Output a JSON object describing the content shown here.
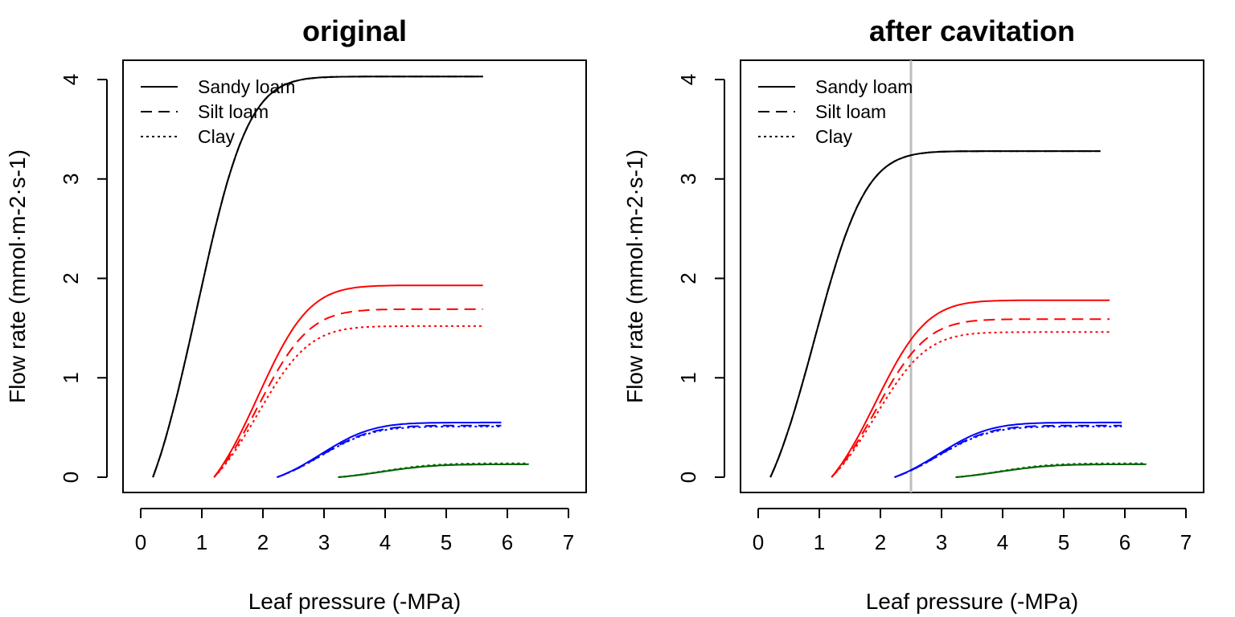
{
  "chart_data": [
    {
      "type": "line",
      "title": "original",
      "xlabel": "Leaf pressure (-MPa)",
      "ylabel": "Flow rate  (mmol·m-2·s-1)",
      "xlim": [
        0,
        7
      ],
      "ylim": [
        0,
        4
      ],
      "xticks": [
        0,
        1,
        2,
        3,
        4,
        5,
        6,
        7
      ],
      "yticks": [
        0,
        1,
        2,
        3,
        4
      ],
      "legend": {
        "position": "top-left",
        "entries": [
          {
            "label": "Sandy loam",
            "linestyle": "solid"
          },
          {
            "label": "Silt loam",
            "linestyle": "dashed"
          },
          {
            "label": "Clay",
            "linestyle": "dotted"
          }
        ]
      },
      "series": [
        {
          "color": "#000000",
          "linestyle": "solid",
          "x0": 0.2,
          "x1": 5.6,
          "ymax": 4.03
        },
        {
          "color": "#000000",
          "linestyle": "dashed",
          "x0": 0.2,
          "x1": 5.6,
          "ymax": 4.03
        },
        {
          "color": "#000000",
          "linestyle": "dotted",
          "x0": 0.2,
          "x1": 5.6,
          "ymax": 4.03
        },
        {
          "color": "#ff0000",
          "linestyle": "solid",
          "x0": 1.2,
          "x1": 5.6,
          "ymax": 1.93
        },
        {
          "color": "#ff0000",
          "linestyle": "dashed",
          "x0": 1.2,
          "x1": 5.6,
          "ymax": 1.69
        },
        {
          "color": "#ff0000",
          "linestyle": "dotted",
          "x0": 1.2,
          "x1": 5.6,
          "ymax": 1.52
        },
        {
          "color": "#0000ff",
          "linestyle": "solid",
          "x0": 2.23,
          "x1": 5.9,
          "ymax": 0.55
        },
        {
          "color": "#0000ff",
          "linestyle": "dashed",
          "x0": 2.23,
          "x1": 5.9,
          "ymax": 0.52
        },
        {
          "color": "#0000ff",
          "linestyle": "dotted",
          "x0": 2.23,
          "x1": 5.9,
          "ymax": 0.51
        },
        {
          "color": "#006400",
          "linestyle": "solid",
          "x0": 3.23,
          "x1": 6.35,
          "ymax": 0.13
        },
        {
          "color": "#006400",
          "linestyle": "dashed",
          "x0": 3.23,
          "x1": 6.35,
          "ymax": 0.13
        },
        {
          "color": "#006400",
          "linestyle": "dotted",
          "x0": 3.23,
          "x1": 6.35,
          "ymax": 0.14
        }
      ]
    },
    {
      "type": "line",
      "title": "after cavitation",
      "xlabel": "Leaf pressure (-MPa)",
      "ylabel": "Flow rate  (mmol·m-2·s-1)",
      "xlim": [
        0,
        7
      ],
      "ylim": [
        0,
        4
      ],
      "xticks": [
        0,
        1,
        2,
        3,
        4,
        5,
        6,
        7
      ],
      "yticks": [
        0,
        1,
        2,
        3,
        4
      ],
      "vline": {
        "x": 2.5,
        "color": "#bebebe"
      },
      "legend": {
        "position": "top-left",
        "entries": [
          {
            "label": "Sandy loam",
            "linestyle": "solid"
          },
          {
            "label": "Silt loam",
            "linestyle": "dashed"
          },
          {
            "label": "Clay",
            "linestyle": "dotted"
          }
        ]
      },
      "series": [
        {
          "color": "#000000",
          "linestyle": "solid",
          "x0": 0.2,
          "x1": 5.6,
          "ymax": 3.28
        },
        {
          "color": "#000000",
          "linestyle": "dashed",
          "x0": 0.2,
          "x1": 5.6,
          "ymax": 3.28
        },
        {
          "color": "#000000",
          "linestyle": "dotted",
          "x0": 0.2,
          "x1": 5.6,
          "ymax": 3.28
        },
        {
          "color": "#ff0000",
          "linestyle": "solid",
          "x0": 1.2,
          "x1": 5.75,
          "ymax": 1.78
        },
        {
          "color": "#ff0000",
          "linestyle": "dashed",
          "x0": 1.2,
          "x1": 5.75,
          "ymax": 1.59
        },
        {
          "color": "#ff0000",
          "linestyle": "dotted",
          "x0": 1.2,
          "x1": 5.75,
          "ymax": 1.46
        },
        {
          "color": "#0000ff",
          "linestyle": "solid",
          "x0": 2.23,
          "x1": 5.95,
          "ymax": 0.55
        },
        {
          "color": "#0000ff",
          "linestyle": "dashed",
          "x0": 2.23,
          "x1": 5.95,
          "ymax": 0.52
        },
        {
          "color": "#0000ff",
          "linestyle": "dotted",
          "x0": 2.23,
          "x1": 5.95,
          "ymax": 0.51
        },
        {
          "color": "#006400",
          "linestyle": "solid",
          "x0": 3.23,
          "x1": 6.35,
          "ymax": 0.13
        },
        {
          "color": "#006400",
          "linestyle": "dashed",
          "x0": 3.23,
          "x1": 6.35,
          "ymax": 0.13
        },
        {
          "color": "#006400",
          "linestyle": "dotted",
          "x0": 3.23,
          "x1": 6.35,
          "ymax": 0.14
        }
      ]
    }
  ]
}
